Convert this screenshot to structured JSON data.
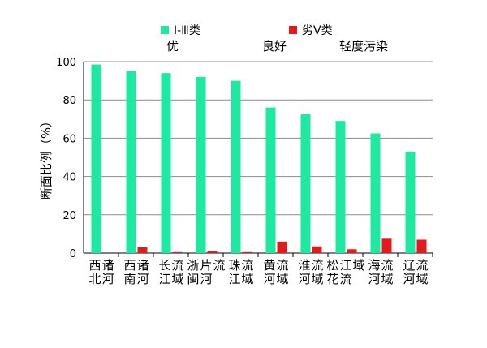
{
  "chart_data": {
    "type": "bar",
    "title": "",
    "xlabel": "",
    "ylabel": "断面比例（%）",
    "ylim": [
      0,
      100
    ],
    "yticks": [
      0,
      20,
      40,
      60,
      80,
      100
    ],
    "grid": true,
    "legend_position": "top",
    "categories": [
      "西北诸河",
      "西南诸河",
      "长江流域",
      "浙闽片河流",
      "珠江流域",
      "黄河流域",
      "淮河流域",
      "松花江流域",
      "海河流域",
      "辽河流域"
    ],
    "series": [
      {
        "name": "Ⅰ-Ⅲ类",
        "color": "#1de9a0",
        "values": [
          98.5,
          95,
          94,
          92,
          90,
          76,
          72.5,
          69,
          62.5,
          53
        ]
      },
      {
        "name": "劣Ⅴ类",
        "color": "#e31a1c",
        "values": [
          0,
          3,
          0.5,
          1,
          0.5,
          6,
          3.5,
          2,
          7.5,
          7
        ]
      }
    ],
    "annotations": [
      "优",
      "良好",
      "轻度污染"
    ]
  }
}
